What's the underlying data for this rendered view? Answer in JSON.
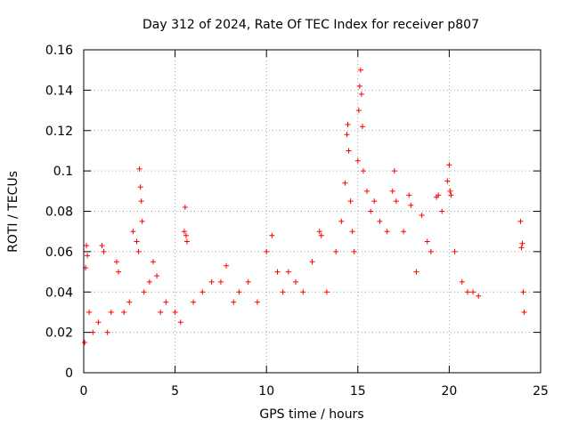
{
  "chart_data": {
    "type": "scatter",
    "title": "Day 312 of 2024, Rate Of TEC Index for receiver p807",
    "xlabel": "GPS time / hours",
    "ylabel": "ROTI / TECUs",
    "xlim": [
      0,
      25
    ],
    "ylim": [
      0,
      0.16
    ],
    "xticks": [
      0,
      5,
      10,
      15,
      20,
      25
    ],
    "xtick_labels": [
      "0",
      "5",
      "10",
      "15",
      "20",
      "25"
    ],
    "yticks": [
      0,
      0.02,
      0.04,
      0.06,
      0.08,
      0.1,
      0.12,
      0.14,
      0.16
    ],
    "ytick_labels": [
      "0",
      "0.02",
      "0.04",
      "0.06",
      "0.08",
      "0.1",
      "0.12",
      "0.14",
      "0.16"
    ],
    "grid": true,
    "marker": "plus",
    "color": "#ff0000",
    "series": [
      {
        "points": [
          [
            0.05,
            0.015
          ],
          [
            0.1,
            0.052
          ],
          [
            0.15,
            0.063
          ],
          [
            0.2,
            0.058
          ],
          [
            0.3,
            0.03
          ],
          [
            0.5,
            0.02
          ],
          [
            0.8,
            0.025
          ],
          [
            1.0,
            0.063
          ],
          [
            1.1,
            0.06
          ],
          [
            1.3,
            0.02
          ],
          [
            1.5,
            0.03
          ],
          [
            1.8,
            0.055
          ],
          [
            1.9,
            0.05
          ],
          [
            2.2,
            0.03
          ],
          [
            2.5,
            0.035
          ],
          [
            2.7,
            0.07
          ],
          [
            2.9,
            0.065
          ],
          [
            3.0,
            0.06
          ],
          [
            3.05,
            0.101
          ],
          [
            3.1,
            0.092
          ],
          [
            3.15,
            0.085
          ],
          [
            3.2,
            0.075
          ],
          [
            3.3,
            0.04
          ],
          [
            3.6,
            0.045
          ],
          [
            3.8,
            0.055
          ],
          [
            4.0,
            0.048
          ],
          [
            4.2,
            0.03
          ],
          [
            4.5,
            0.035
          ],
          [
            5.0,
            0.03
          ],
          [
            5.3,
            0.025
          ],
          [
            5.5,
            0.07
          ],
          [
            5.55,
            0.082
          ],
          [
            5.6,
            0.068
          ],
          [
            5.65,
            0.065
          ],
          [
            6.0,
            0.035
          ],
          [
            6.5,
            0.04
          ],
          [
            7.0,
            0.045
          ],
          [
            7.5,
            0.045
          ],
          [
            7.8,
            0.053
          ],
          [
            8.2,
            0.035
          ],
          [
            8.5,
            0.04
          ],
          [
            9.0,
            0.045
          ],
          [
            9.5,
            0.035
          ],
          [
            10.0,
            0.06
          ],
          [
            10.3,
            0.068
          ],
          [
            10.6,
            0.05
          ],
          [
            10.9,
            0.04
          ],
          [
            11.2,
            0.05
          ],
          [
            11.6,
            0.045
          ],
          [
            12.0,
            0.04
          ],
          [
            12.5,
            0.055
          ],
          [
            12.9,
            0.07
          ],
          [
            13.0,
            0.068
          ],
          [
            13.3,
            0.04
          ],
          [
            13.8,
            0.06
          ],
          [
            14.1,
            0.075
          ],
          [
            14.3,
            0.094
          ],
          [
            14.4,
            0.118
          ],
          [
            14.45,
            0.123
          ],
          [
            14.5,
            0.11
          ],
          [
            14.6,
            0.085
          ],
          [
            14.7,
            0.07
          ],
          [
            14.8,
            0.06
          ],
          [
            15.0,
            0.105
          ],
          [
            15.05,
            0.13
          ],
          [
            15.1,
            0.142
          ],
          [
            15.15,
            0.15
          ],
          [
            15.2,
            0.138
          ],
          [
            15.25,
            0.122
          ],
          [
            15.3,
            0.1
          ],
          [
            15.5,
            0.09
          ],
          [
            15.7,
            0.08
          ],
          [
            15.9,
            0.085
          ],
          [
            16.2,
            0.075
          ],
          [
            16.6,
            0.07
          ],
          [
            16.9,
            0.09
          ],
          [
            17.0,
            0.1
          ],
          [
            17.1,
            0.085
          ],
          [
            17.5,
            0.07
          ],
          [
            17.8,
            0.088
          ],
          [
            17.9,
            0.083
          ],
          [
            18.2,
            0.05
          ],
          [
            18.5,
            0.078
          ],
          [
            18.8,
            0.065
          ],
          [
            19.0,
            0.06
          ],
          [
            19.3,
            0.087
          ],
          [
            19.4,
            0.088
          ],
          [
            19.6,
            0.08
          ],
          [
            19.9,
            0.095
          ],
          [
            20.0,
            0.103
          ],
          [
            20.05,
            0.09
          ],
          [
            20.1,
            0.088
          ],
          [
            20.3,
            0.06
          ],
          [
            20.7,
            0.045
          ],
          [
            21.0,
            0.04
          ],
          [
            21.3,
            0.04
          ],
          [
            21.6,
            0.038
          ],
          [
            23.9,
            0.075
          ],
          [
            23.95,
            0.062
          ],
          [
            24.0,
            0.064
          ],
          [
            24.05,
            0.04
          ],
          [
            24.1,
            0.03
          ]
        ]
      }
    ]
  }
}
